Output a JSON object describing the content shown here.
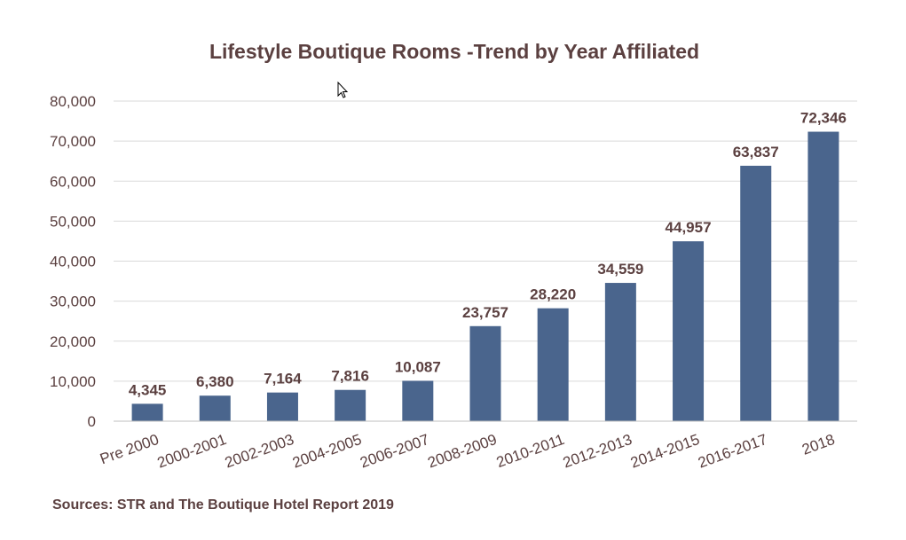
{
  "chart_data": {
    "type": "bar",
    "title": "Lifestyle Boutique Rooms -Trend by Year Affiliated",
    "categories": [
      "Pre 2000",
      "2000-2001",
      "2002-2003",
      "2004-2005",
      "2006-2007",
      "2008-2009",
      "2010-2011",
      "2012-2013",
      "2014-2015",
      "2016-2017",
      "2018"
    ],
    "values": [
      4345,
      6380,
      7164,
      7816,
      10087,
      23757,
      28220,
      34559,
      44957,
      63837,
      72346
    ],
    "data_labels": [
      "4,345",
      "6,380",
      "7,164",
      "7,816",
      "10,087",
      "23,757",
      "28,220",
      "34,559",
      "44,957",
      "63,837",
      "72,346"
    ],
    "yticks": [
      "0",
      "10,000",
      "20,000",
      "30,000",
      "40,000",
      "50,000",
      "60,000",
      "70,000",
      "80,000"
    ],
    "ylim": [
      0,
      80000
    ],
    "xlabel": "",
    "ylabel": "",
    "grid": true,
    "bar_color": "#4a658d",
    "text_color": "#5b4040",
    "source": "Sources: STR and The Boutique Hotel Report 2019"
  }
}
